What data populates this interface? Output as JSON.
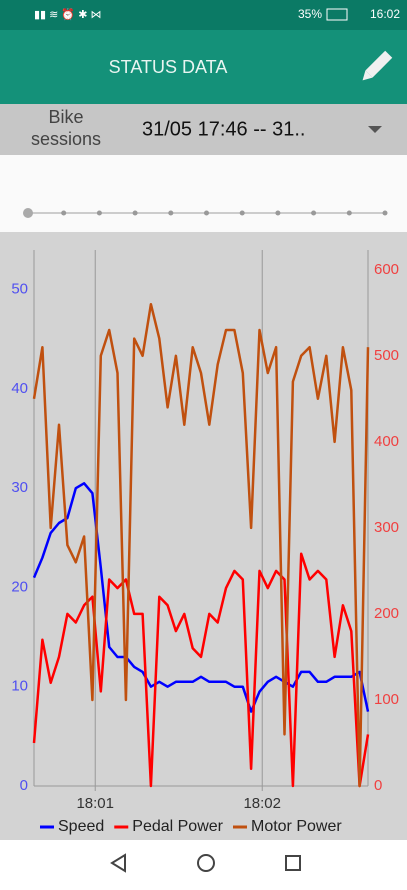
{
  "status_bar": {
    "battery": "35%",
    "time": "16:02"
  },
  "app_bar": {
    "title": "STATUS DATA"
  },
  "session_bar": {
    "label": "Bike sessions",
    "value": "31/05 17:46 -- 31.."
  },
  "chart_data": {
    "type": "line",
    "x": [
      38,
      41,
      44,
      47,
      50,
      53,
      56,
      59,
      62,
      65,
      68,
      71,
      74,
      77,
      80,
      83,
      86,
      89,
      92,
      95,
      98,
      101,
      104,
      107,
      110,
      113,
      116,
      119,
      122,
      125,
      128,
      131,
      134,
      137,
      140,
      143,
      146,
      149,
      152,
      155,
      158
    ],
    "xlim": [
      38,
      158
    ],
    "xticks": [
      {
        "value": 60,
        "label": "18:01"
      },
      {
        "value": 120,
        "label": "18:02"
      }
    ],
    "ylim": [
      0,
      54
    ],
    "yticks": [
      0,
      10,
      20,
      30,
      40,
      50
    ],
    "y2lim": [
      0,
      623
    ],
    "y2ticks": [
      0,
      100,
      200,
      300,
      400,
      500,
      600
    ],
    "grid": true,
    "series": [
      {
        "name": "Speed",
        "color": "#0000ff",
        "values": [
          21,
          23,
          25.5,
          26.5,
          27,
          30,
          30.5,
          29.5,
          22,
          14,
          13,
          13,
          12,
          11.5,
          10,
          10.5,
          10,
          10.5,
          10.5,
          10.5,
          11,
          10.5,
          10.5,
          10.5,
          10,
          10,
          7.5,
          9.5,
          10.5,
          11,
          10.5,
          10,
          11.5,
          11.5,
          10.5,
          10.5,
          11,
          11,
          11,
          11.5,
          7.5
        ]
      },
      {
        "name": "Pedal Power",
        "color": "#ff0000",
        "axis": "y2",
        "values": [
          50,
          170,
          120,
          150,
          200,
          190,
          210,
          220,
          110,
          240,
          230,
          240,
          200,
          200,
          0,
          220,
          210,
          180,
          200,
          160,
          150,
          200,
          190,
          230,
          250,
          240,
          20,
          250,
          230,
          250,
          240,
          0,
          270,
          240,
          250,
          240,
          150,
          210,
          180,
          0,
          60
        ]
      },
      {
        "name": "Motor Power",
        "color": "#c0500f",
        "axis": "y2",
        "values": [
          450,
          510,
          300,
          420,
          280,
          260,
          290,
          100,
          500,
          530,
          480,
          100,
          520,
          500,
          560,
          520,
          440,
          500,
          420,
          510,
          480,
          420,
          490,
          530,
          530,
          480,
          300,
          530,
          480,
          510,
          60,
          470,
          500,
          510,
          450,
          500,
          400,
          510,
          460,
          0,
          510
        ]
      }
    ]
  }
}
